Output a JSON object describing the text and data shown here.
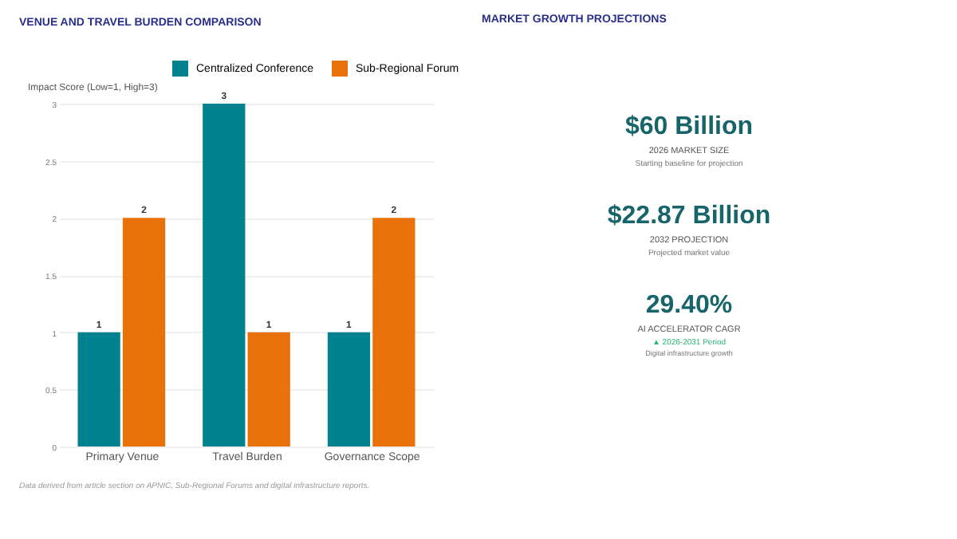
{
  "chart_data": [
    {
      "type": "bar",
      "title": "VENUE AND TRAVEL BURDEN COMPARISON",
      "ylabel": "Impact Score (Low=1, High=3)",
      "categories": [
        "Primary Venue",
        "Travel Burden",
        "Governance Scope"
      ],
      "series": [
        {
          "name": "Centralized Conference",
          "color": "#00838f",
          "values": [
            1,
            3,
            1
          ]
        },
        {
          "name": "Sub-Regional Forum",
          "color": "#e8710a",
          "values": [
            2,
            1,
            2
          ]
        }
      ],
      "ylim": [
        0,
        3
      ],
      "yticks": [
        0,
        0.5,
        1,
        1.5,
        2,
        2.5,
        3
      ],
      "grid": "y",
      "legend": "top",
      "data_labels": true,
      "annotations": [
        "Data derived from article section on APNIC, Sub-Regional Forums and digital infrastructure reports."
      ]
    },
    {
      "type": "other",
      "title": "MARKET GROWTH PROJECTIONS",
      "annotations": [
        "$60 Billion",
        "2026 MARKET SIZE",
        "Starting baseline for projection"
      ]
    },
    {
      "type": "other",
      "annotations": [
        "$22.87 Billion",
        "2032 PROJECTION",
        "Projected market value"
      ]
    },
    {
      "type": "other",
      "annotations": [
        "29.40%",
        "AI ACCELERATOR CAGR",
        "▲ 2026-2031 Period",
        "Digital infrastructure growth"
      ]
    }
  ]
}
